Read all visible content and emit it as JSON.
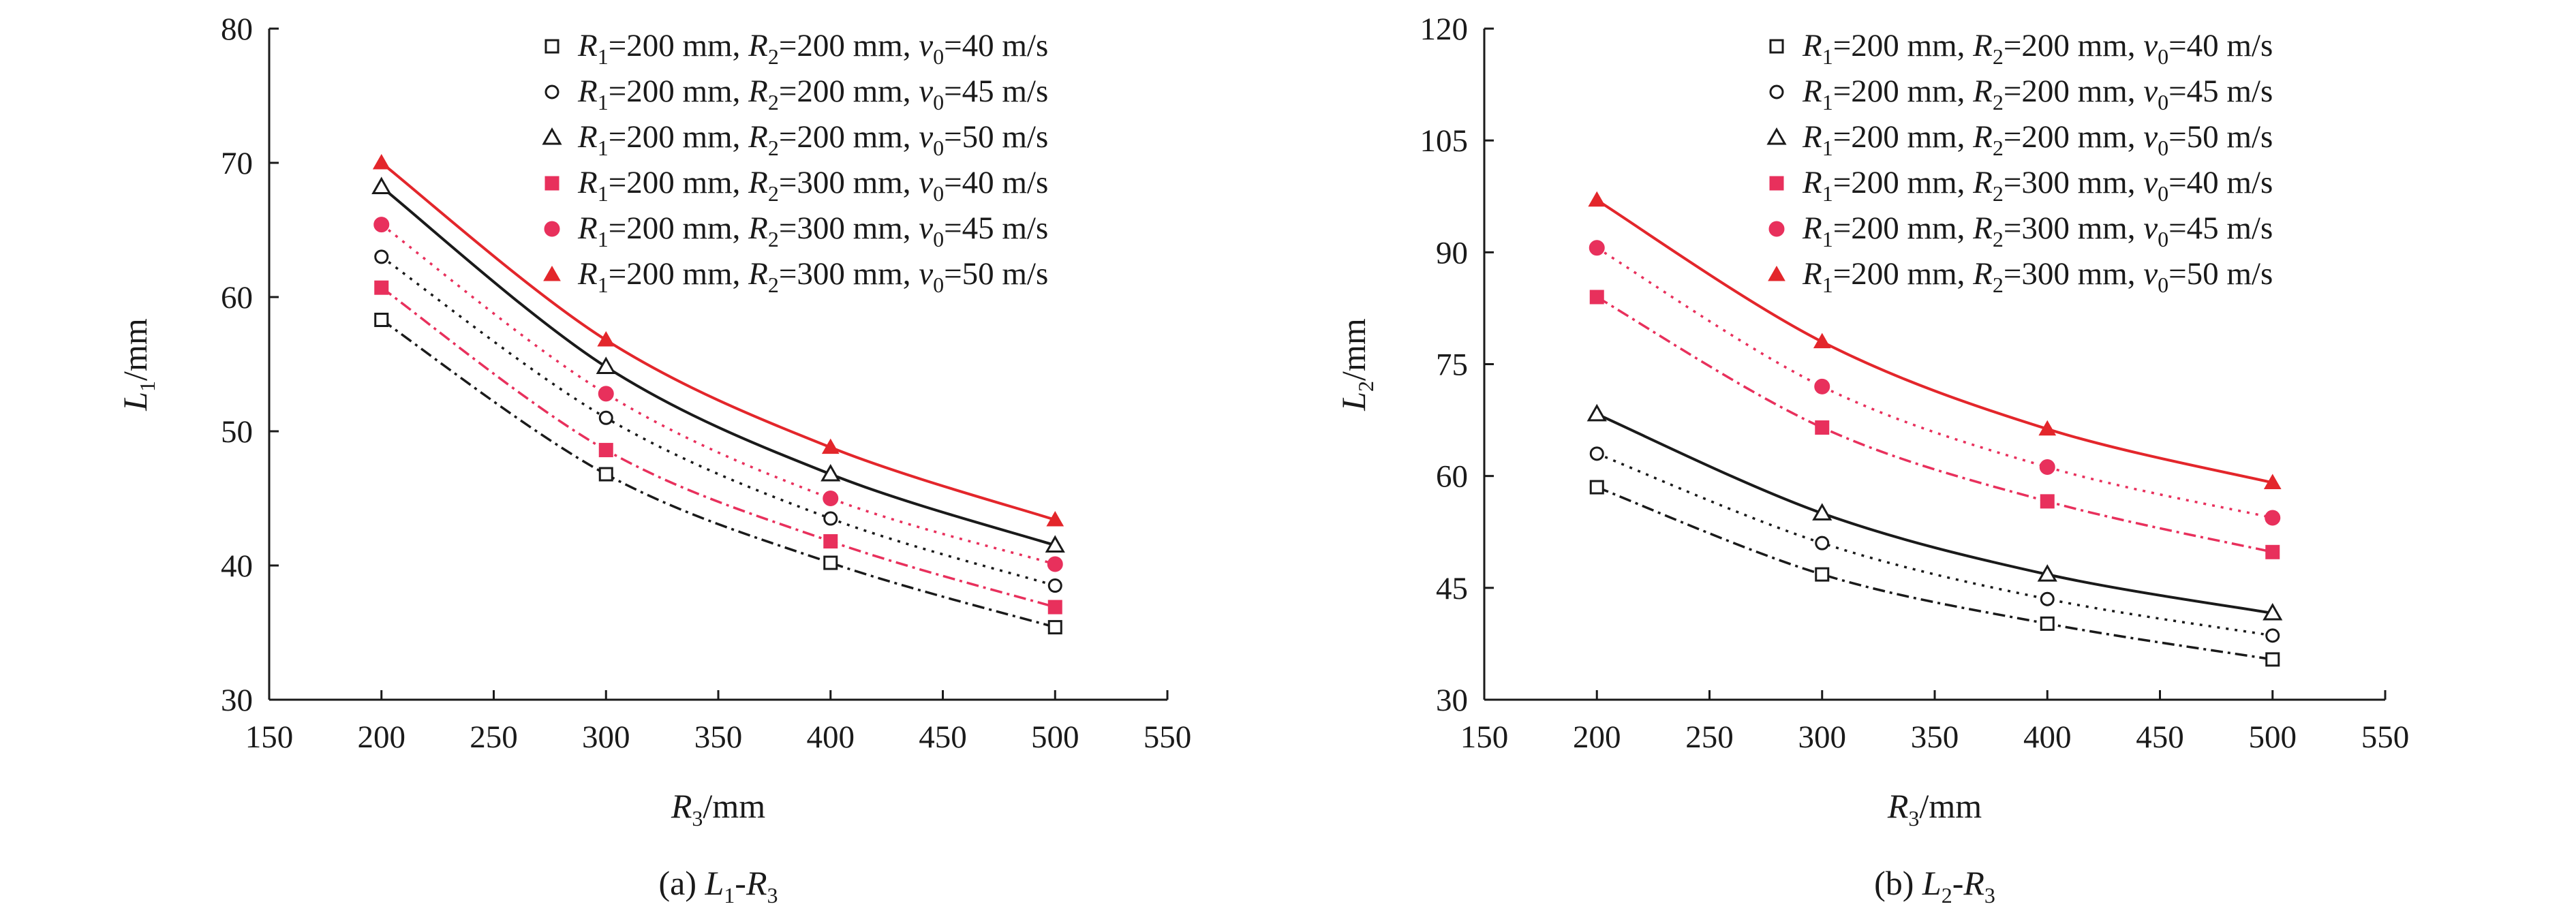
{
  "colors": {
    "black": "#1a1a1a",
    "red": "#e3262b",
    "pink": "#e8305c"
  },
  "legend_entries": [
    {
      "r2": "200",
      "v0": "40",
      "marker": "open-square",
      "line": "dash-dot",
      "color": "#1a1a1a"
    },
    {
      "r2": "200",
      "v0": "45",
      "marker": "open-circle",
      "line": "dotted",
      "color": "#1a1a1a"
    },
    {
      "r2": "200",
      "v0": "50",
      "marker": "open-triangle",
      "line": "solid",
      "color": "#1a1a1a"
    },
    {
      "r2": "300",
      "v0": "40",
      "marker": "filled-square",
      "line": "dash-dot",
      "color": "#e8305c"
    },
    {
      "r2": "300",
      "v0": "45",
      "marker": "filled-circle",
      "line": "dotted",
      "color": "#e8305c"
    },
    {
      "r2": "300",
      "v0": "50",
      "marker": "filled-triangle",
      "line": "solid",
      "color": "#e3262b"
    }
  ],
  "legend_text": {
    "r1_value": "=200 mm, ",
    "r2_prefix": "=",
    "r2_suffix": " mm, ",
    "v_prefix": "=",
    "v_suffix": " m/s"
  },
  "chart_data": [
    {
      "type": "scatter",
      "caption": {
        "prefix": "(a) ",
        "y_var": "L",
        "y_sub": "1",
        "x_var": "R",
        "x_sub": "3"
      },
      "xlabel": {
        "var": "R",
        "sub": "3",
        "unit": "/mm"
      },
      "ylabel": {
        "var": "L",
        "sub": "1",
        "unit": "/mm"
      },
      "xlim": [
        150,
        550
      ],
      "ylim": [
        30,
        80
      ],
      "xticks": [
        150,
        200,
        250,
        300,
        350,
        400,
        450,
        500,
        550
      ],
      "yticks": [
        30,
        40,
        50,
        60,
        70,
        80
      ],
      "legend_position": "top-right",
      "x": [
        200,
        300,
        400,
        500
      ],
      "series": [
        {
          "values": [
            58.3,
            46.8,
            40.2,
            35.4
          ]
        },
        {
          "values": [
            63.0,
            51.0,
            43.5,
            38.5
          ]
        },
        {
          "values": [
            68.2,
            54.8,
            46.8,
            41.5
          ]
        },
        {
          "values": [
            60.7,
            48.6,
            41.8,
            36.9
          ]
        },
        {
          "values": [
            65.4,
            52.8,
            45.0,
            40.1
          ]
        },
        {
          "values": [
            70.0,
            56.8,
            48.8,
            43.4
          ]
        }
      ]
    },
    {
      "type": "scatter",
      "caption": {
        "prefix": "(b) ",
        "y_var": "L",
        "y_sub": "2",
        "x_var": "R",
        "x_sub": "3"
      },
      "xlabel": {
        "var": "R",
        "sub": "3",
        "unit": "/mm"
      },
      "ylabel": {
        "var": "L",
        "sub": "2",
        "unit": "/mm"
      },
      "xlim": [
        150,
        550
      ],
      "ylim": [
        30,
        120
      ],
      "xticks": [
        150,
        200,
        250,
        300,
        350,
        400,
        450,
        500,
        550
      ],
      "yticks": [
        30,
        45,
        60,
        75,
        90,
        105,
        120
      ],
      "legend_position": "top-right",
      "x": [
        200,
        300,
        400,
        500
      ],
      "series": [
        {
          "values": [
            58.5,
            46.8,
            40.2,
            35.4
          ]
        },
        {
          "values": [
            63.0,
            51.0,
            43.5,
            38.6
          ]
        },
        {
          "values": [
            68.3,
            55.0,
            46.8,
            41.6
          ]
        },
        {
          "values": [
            84.0,
            66.5,
            56.6,
            49.8
          ]
        },
        {
          "values": [
            90.6,
            72.0,
            61.2,
            54.4
          ]
        },
        {
          "values": [
            97.0,
            78.0,
            66.3,
            59.1
          ]
        }
      ]
    }
  ]
}
